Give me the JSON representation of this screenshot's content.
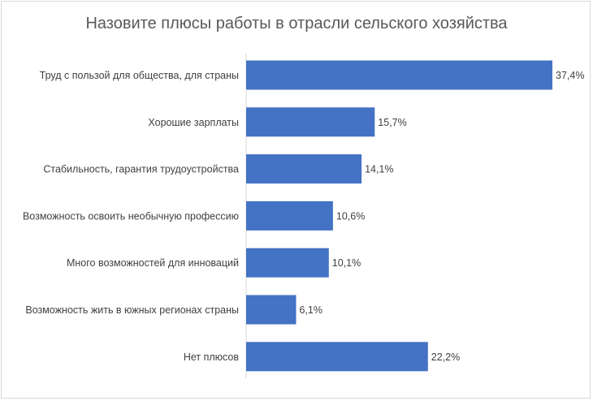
{
  "chart_data": {
    "type": "bar",
    "orientation": "horizontal",
    "title": "Назовите плюсы работы в отрасли сельского хозяйства",
    "categories": [
      "Труд с пользой для общества, для страны",
      "Хорошие зарплаты",
      "Стабильность, гарантия трудоустройства",
      "Возможность освоить необычную профессию",
      "Много возможностей для инноваций",
      "Возможность жить в южных регионах страны",
      "Нет плюсов"
    ],
    "values": [
      37.4,
      15.7,
      14.1,
      10.6,
      10.1,
      6.1,
      22.2
    ],
    "value_labels": [
      "37,4%",
      "15,7%",
      "14,1%",
      "10,6%",
      "10,1%",
      "6,1%",
      "22,2%"
    ],
    "xlim": [
      0,
      37.4
    ],
    "bar_color": "#4472c4",
    "grid": false,
    "legend": "none"
  }
}
